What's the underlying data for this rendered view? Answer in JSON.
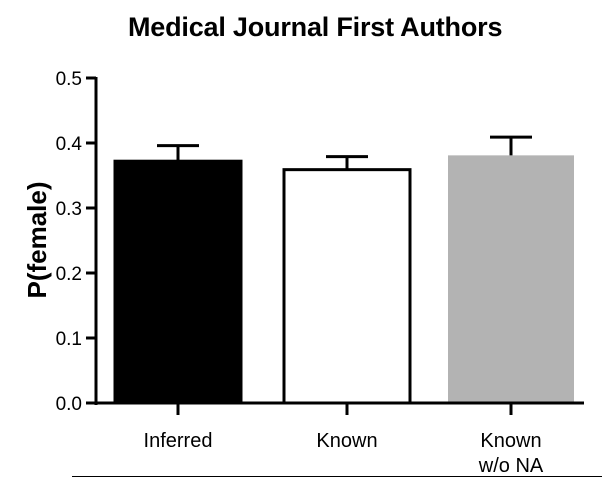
{
  "chart_data": {
    "type": "bar",
    "title": "Medical Journal First Authors",
    "xlabel": "",
    "ylabel": "P(female)",
    "categories": [
      "Inferred",
      "Known",
      "Known\nw/o NA"
    ],
    "values": [
      0.372,
      0.359,
      0.381
    ],
    "error_upper": [
      0.396,
      0.379,
      0.409
    ],
    "bar_colors": [
      "#000000",
      "#ffffff",
      "#b3b3b3"
    ],
    "ylim": [
      0,
      0.5
    ],
    "yticks": [
      0.0,
      0.1,
      0.2,
      0.3,
      0.4,
      0.5
    ],
    "ytick_labels": [
      "0.0",
      "0.1",
      "0.2",
      "0.3",
      "0.4",
      "0.5"
    ],
    "grid": false,
    "legend": "none"
  }
}
